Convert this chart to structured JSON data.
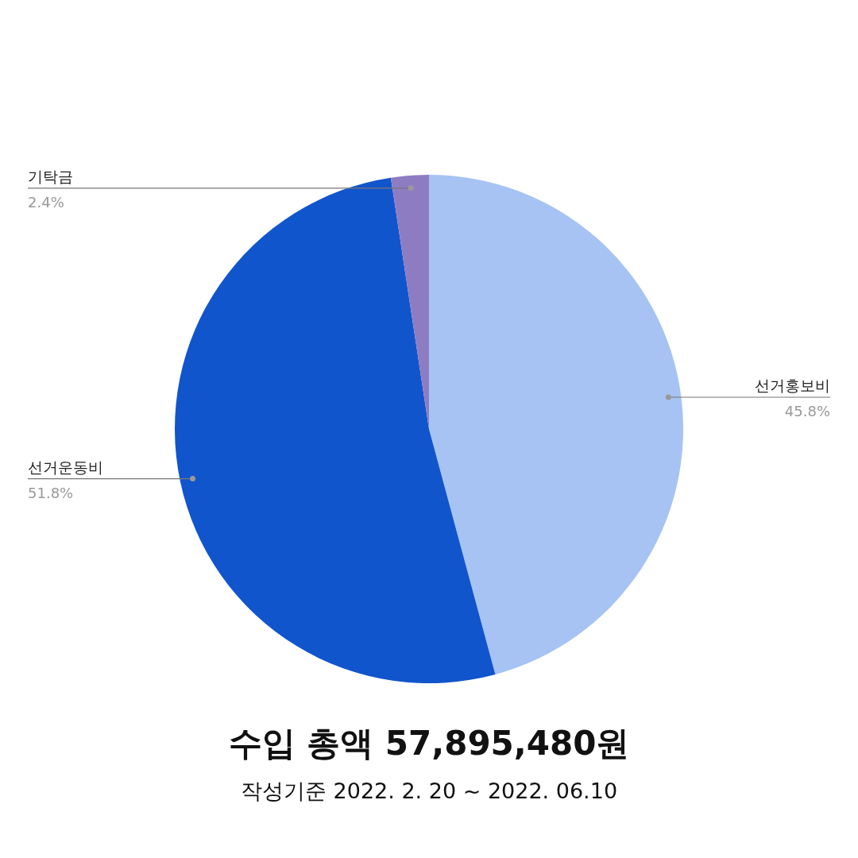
{
  "chart_data": {
    "type": "pie",
    "title": "수입 총액 57,895,480원",
    "subtitle": "작성기준 2022. 2. 20 ~ 2022. 06.10",
    "categories": [
      "선거홍보비",
      "선거운동비",
      "기탁금"
    ],
    "values": [
      45.8,
      51.8,
      2.4
    ],
    "colors": [
      "#a7c3f3",
      "#1155cc",
      "#8e7cc3"
    ],
    "value_labels": [
      "45.8%",
      "51.8%",
      "2.4%"
    ]
  }
}
